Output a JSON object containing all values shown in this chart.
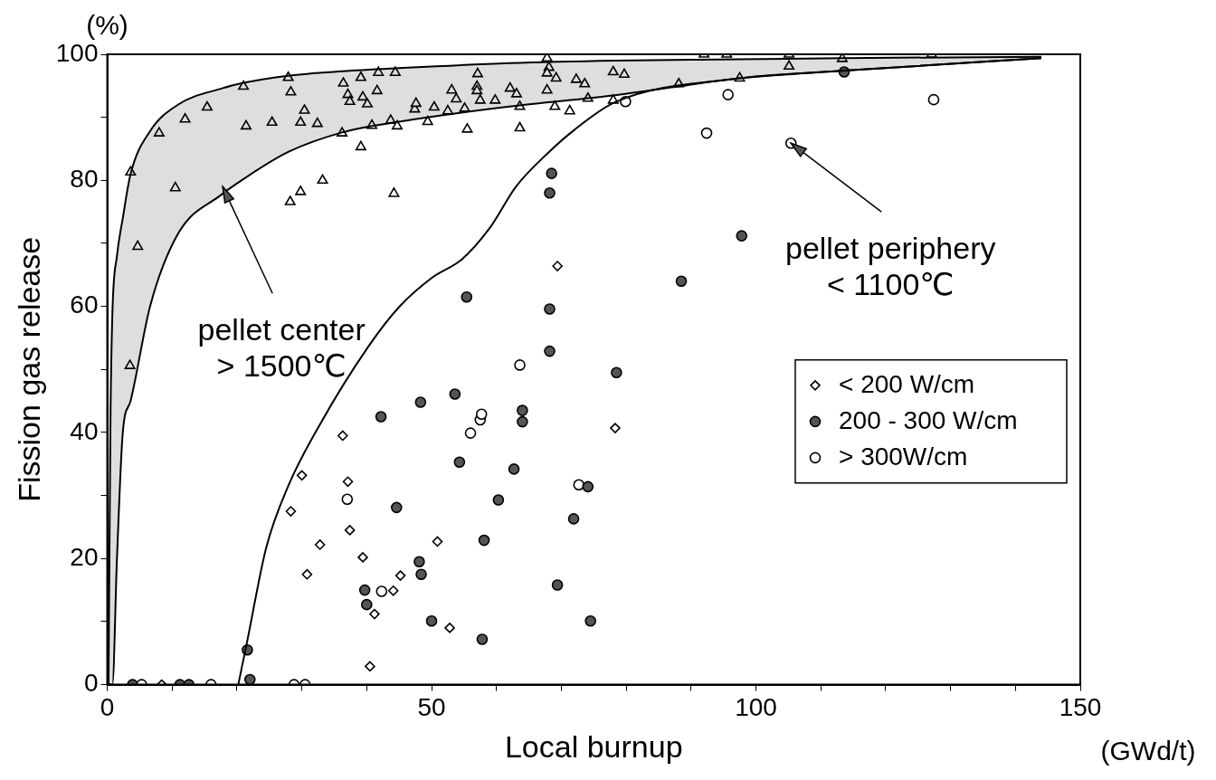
{
  "chart_data": {
    "type": "scatter",
    "xlabel": "Local burnup",
    "ylabel": "Fission gas release",
    "xlim": [
      0,
      150
    ],
    "xticks": [
      0,
      {
        "value": 10,
        "label": null
      },
      {
        "value": 20,
        "label": null
      },
      {
        "value": 30,
        "label": null
      },
      {
        "value": 40,
        "label": null
      },
      50,
      {
        "value": 60,
        "label": null
      },
      {
        "value": 70,
        "label": null
      },
      {
        "value": 80,
        "label": null
      },
      {
        "value": 90,
        "label": null
      },
      100,
      {
        "value": 110,
        "label": null
      },
      {
        "value": 120,
        "label": null
      },
      {
        "value": 130,
        "label": null
      },
      {
        "value": 140,
        "label": null
      },
      150
    ],
    "ylim": [
      0,
      100
    ],
    "yticks": [
      0,
      {
        "value": 10,
        "label": null
      },
      20,
      {
        "value": 30,
        "label": null
      },
      40,
      {
        "value": 50,
        "label": null
      },
      60,
      {
        "value": 70,
        "label": null
      },
      80,
      {
        "value": 90,
        "label": null
      },
      100
    ],
    "grid": false,
    "legend": "right",
    "annotations": [
      "(%)",
      "(GWd/t)",
      {
        "text": "pellet center\n> 1500℃",
        "x": 17.8,
        "y": 79
      },
      {
        "text": "pellet periphery\n< 1100℃",
        "x": 105.4,
        "y": 85.9
      }
    ],
    "series": [
      {
        "type": "line",
        "color": "#000000",
        "line_style": "solid",
        "marker": "none",
        "x": [
          0.2,
          0.5,
          0.8,
          1.5,
          2.4,
          3.6,
          6.6,
          10.9,
          17.7,
          20.7,
          27.9,
          36.2,
          45,
          62,
          78.3,
          97.5,
          113.6,
          144
        ],
        "values": [
          0,
          42,
          59,
          68,
          74,
          81,
          87.8,
          92,
          94.6,
          95.4,
          96.6,
          97.3,
          97.8,
          98.6,
          99,
          99.2,
          99.4,
          99.6
        ]
      },
      {
        "type": "line",
        "color": "#000000",
        "line_style": "solid",
        "marker": "none",
        "x": [
          0.2,
          0.5,
          0.8,
          1.5,
          2.4,
          3.6,
          6.6,
          10.9,
          17.7,
          20.7,
          27.9,
          36.2,
          45,
          62,
          78.3,
          97.5,
          113.6,
          144
        ],
        "values": [
          0,
          0,
          0,
          20,
          40,
          45,
          60,
          71.5,
          77.8,
          80,
          84.5,
          87.6,
          89.3,
          91.7,
          93.5,
          96.2,
          97.4,
          99.4
        ],
        "lower": [
          0,
          0,
          0,
          20,
          40,
          45,
          60,
          71.5,
          77.8,
          80,
          84.5,
          87.6,
          89.3,
          91.7,
          93.5,
          96.2,
          97.4,
          99.4
        ],
        "upper": [
          0,
          42,
          59,
          68,
          74,
          81,
          87.8,
          92,
          94.6,
          95.4,
          96.6,
          97.3,
          97.8,
          98.6,
          99,
          99.2,
          99.4,
          99.6
        ]
      },
      {
        "type": "line",
        "color": "#000000",
        "line_style": "solid",
        "marker": "none",
        "x": [
          20.2,
          21.6,
          24.5,
          27.9,
          32.8,
          40.1,
          44.9,
          50,
          54.7,
          59,
          63,
          67.8,
          72,
          78.3,
          97.5,
          113.6,
          144
        ],
        "values": [
          0,
          7,
          21.7,
          31.5,
          41.3,
          53.4,
          59.8,
          64.5,
          67.5,
          72.5,
          79,
          84.2,
          88,
          92.4,
          96.2,
          97.4,
          99.4
        ]
      },
      {
        "type": "scatter",
        "color": "#ffffff",
        "marker": "triangle",
        "x": [
          3.6,
          4.7,
          3.5,
          8.0,
          10.5,
          12.0,
          15.4,
          21.0,
          21.4,
          25.4,
          27.9,
          28.3,
          28.2,
          29.8,
          30.4,
          29.8,
          32.4,
          33.2,
          36.2,
          36.4,
          37.1,
          37.4,
          39.1,
          39.4,
          40.1,
          39.1,
          40.8,
          41.6,
          41.8,
          44.4,
          44.2,
          43.7,
          44.7,
          47.4,
          47.6,
          49.4,
          50.4,
          52.5,
          53.1,
          53.8,
          55.1,
          55.5,
          57.1,
          57.0,
          57.0,
          57.5,
          59.8,
          62.1,
          63.1,
          63.6,
          63.6,
          67.8,
          68.1,
          67.8,
          69.2,
          67.8,
          69.0,
          71.3,
          72.3,
          73.6,
          74.1,
          78.0,
          79.7,
          78.0,
          88.1,
          92.0,
          95.5,
          97.5,
          105.1,
          105.1,
          113.3,
          127.1
        ],
        "values": [
          81.3,
          69.5,
          50.6,
          87.5,
          78.8,
          89.7,
          91.6,
          94.9,
          88.6,
          89.2,
          96.3,
          94.0,
          76.6,
          78.2,
          91.1,
          89.2,
          89.0,
          80.0,
          87.5,
          95.4,
          93.6,
          92.5,
          96.3,
          93.2,
          92.1,
          85.3,
          88.7,
          94.2,
          97.1,
          97.1,
          77.9,
          89.5,
          88.6,
          91.3,
          92.2,
          89.3,
          91.6,
          91.0,
          94.3,
          92.9,
          91.4,
          88.1,
          96.9,
          94.9,
          94.2,
          92.7,
          92.7,
          94.6,
          93.7,
          91.7,
          88.3,
          99.4,
          97.9,
          97.0,
          96.2,
          94.3,
          91.7,
          91.0,
          96.0,
          95.3,
          93.0,
          97.2,
          96.8,
          92.7,
          95.3,
          100,
          100,
          96.2,
          100,
          98.1,
          99.3,
          100
        ]
      },
      {
        "type": "scatter",
        "name": "< 200 W/cm",
        "color": "#ffffff",
        "marker": "diamond",
        "x": [
          8.4,
          28.3,
          30.0,
          30.8,
          32.8,
          36.3,
          37.1,
          37.4,
          39.4,
          40.5,
          41.2,
          44.1,
          45.2,
          50.9,
          52.8,
          69.4,
          78.3
        ],
        "values": [
          0,
          27.5,
          33.2,
          17.5,
          22.2,
          39.5,
          32.2,
          24.5,
          20.2,
          2.9,
          11.2,
          14.9,
          17.3,
          22.7,
          9.0,
          66.4,
          40.7
        ]
      },
      {
        "type": "scatter",
        "name": "200 - 300 W/cm",
        "color": "#555555",
        "marker": "circle",
        "x": [
          3.9,
          11.2,
          12.6,
          21.6,
          22.0,
          39.7,
          40.0,
          42.2,
          44.6,
          48.1,
          48.4,
          48.3,
          50.0,
          53.6,
          54.3,
          55.4,
          57.8,
          58.1,
          60.3,
          62.7,
          64.0,
          64.0,
          68.2,
          68.2,
          68.2,
          68.5,
          69.4,
          71.9,
          74.1,
          74.5,
          78.5,
          88.5,
          97.8,
          113.6
        ],
        "values": [
          0,
          0,
          0,
          5.5,
          0.8,
          15.0,
          12.7,
          42.5,
          28.1,
          19.5,
          17.5,
          44.8,
          10.1,
          46.1,
          35.3,
          61.5,
          7.2,
          22.9,
          29.3,
          34.2,
          43.5,
          41.7,
          59.6,
          52.9,
          78.0,
          81.1,
          15.8,
          26.3,
          31.4,
          10.1,
          49.5,
          64.0,
          71.2,
          97.2
        ]
      },
      {
        "type": "scatter",
        "name": "> 300W/cm",
        "color": "#ffffff",
        "marker": "circle",
        "x": [
          5.3,
          16.0,
          28.8,
          30.5,
          37.0,
          42.3,
          56.0,
          57.5,
          57.7,
          63.6,
          72.7,
          79.9,
          92.4,
          95.7,
          105.4,
          127.4
        ],
        "values": [
          0,
          0,
          0,
          0,
          29.4,
          14.8,
          39.9,
          42.0,
          42.9,
          50.7,
          31.7,
          92.5,
          87.5,
          93.6,
          85.9,
          92.8
        ]
      }
    ]
  }
}
